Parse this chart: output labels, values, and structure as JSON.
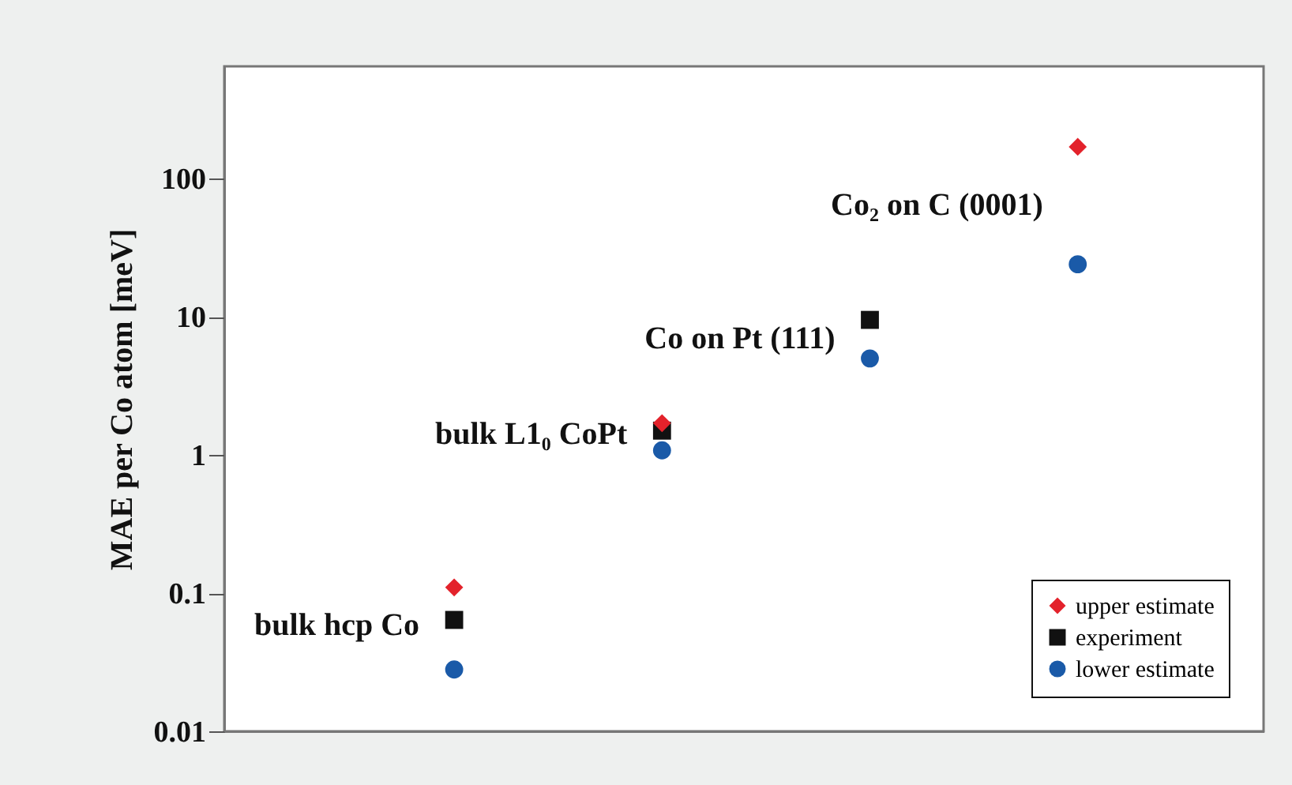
{
  "chart_data": {
    "type": "scatter",
    "ylabel": "MAE per Co atom [meV]",
    "categories": [
      null,
      null,
      null,
      null
    ],
    "series": [
      {
        "name": "upper estimate",
        "color": "#e3222b",
        "marker": "diamond",
        "values": [
          0.11,
          1.7,
          null,
          170
        ]
      },
      {
        "name": "experiment",
        "color": "#111111",
        "marker": "square",
        "values": [
          0.064,
          1.5,
          9.5,
          null
        ]
      },
      {
        "name": "lower estimate",
        "color": "#1a5aa8",
        "marker": "circle",
        "values": [
          0.028,
          1.08,
          5,
          24
        ]
      }
    ],
    "annotations": [
      "bulk hcp Co",
      "bulk L1₀ CoPt",
      "Co on Pt (111)",
      "Co₂ on C (0001)"
    ],
    "log": "y",
    "ylim": [
      0.01,
      650
    ],
    "yticks": [
      0.01,
      0.1,
      1,
      10,
      100
    ],
    "tick_labels": "y",
    "grid": false,
    "legend": "bottom right"
  }
}
